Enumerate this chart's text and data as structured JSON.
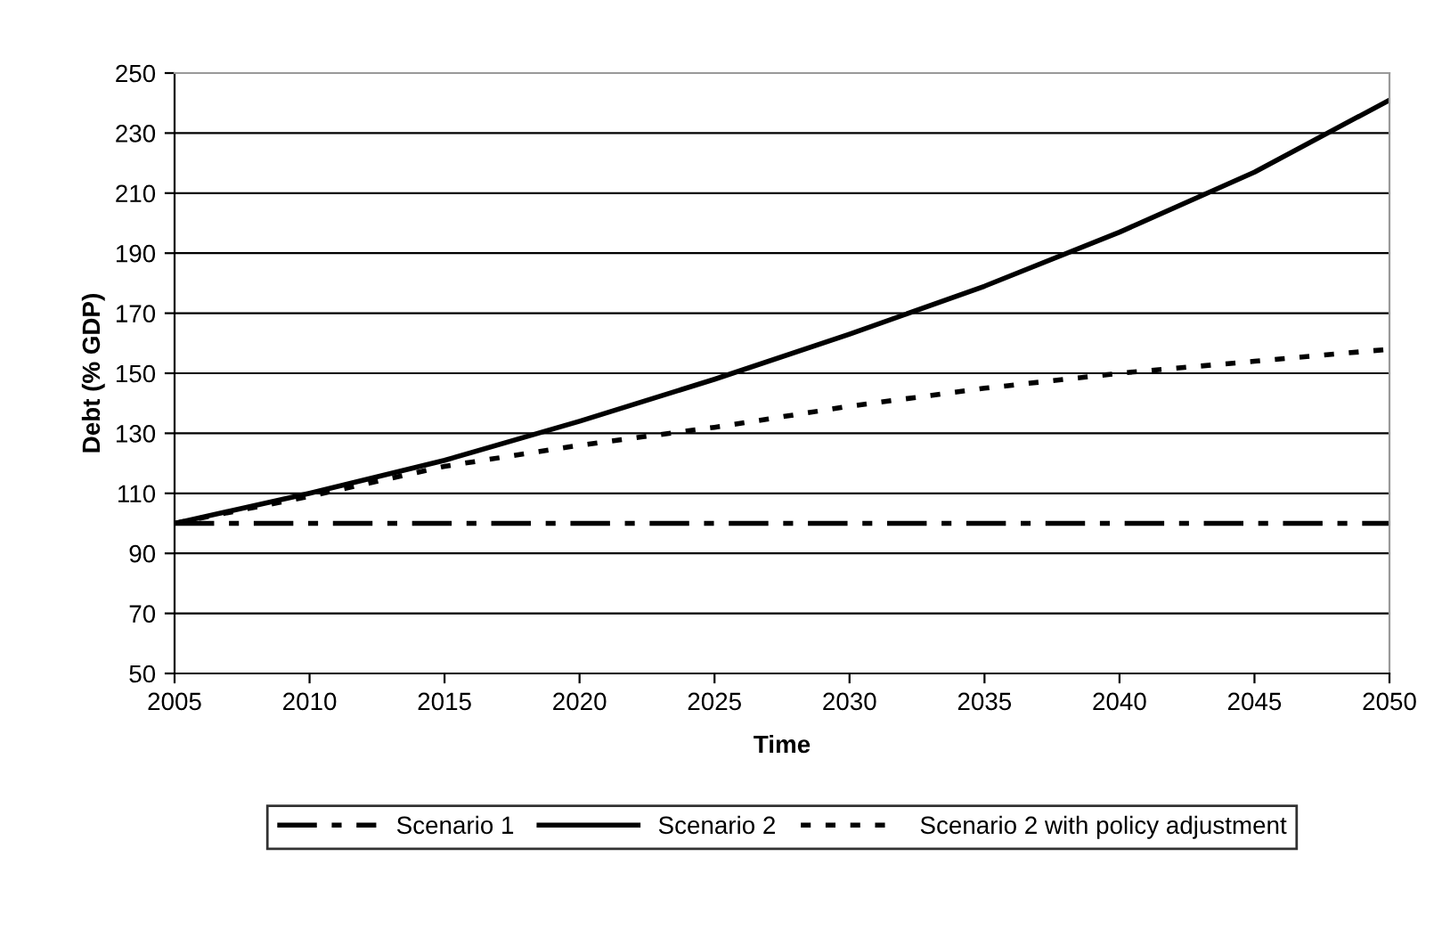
{
  "chart_data": {
    "type": "line",
    "xlabel": "Time",
    "ylabel": "Debt (% GDP)",
    "x": [
      2005,
      2010,
      2015,
      2020,
      2025,
      2030,
      2035,
      2040,
      2045,
      2050
    ],
    "series": [
      {
        "name": "Scenario 1",
        "color": "#000000",
        "line_style": "dashdot",
        "values": [
          100,
          100,
          100,
          100,
          100,
          100,
          100,
          100,
          100,
          100
        ]
      },
      {
        "name": "Scenario 2",
        "color": "#000000",
        "line_style": "solid",
        "values": [
          100,
          110,
          121,
          134,
          148,
          163,
          179,
          197,
          217,
          241
        ]
      },
      {
        "name": "Scenario 2 with policy adjustment",
        "color": "#000000",
        "line_style": "dotted",
        "values": [
          100,
          109,
          119,
          126,
          132,
          139,
          145,
          150,
          154,
          158
        ]
      }
    ],
    "xlim": [
      2005,
      2050
    ],
    "xticks": [
      2005,
      2010,
      2015,
      2020,
      2025,
      2030,
      2035,
      2040,
      2045,
      2050
    ],
    "ylim": [
      50,
      250
    ],
    "yticks": [
      50,
      70,
      90,
      110,
      130,
      150,
      170,
      190,
      210,
      230,
      250
    ],
    "grid": "y",
    "legend": "bottom",
    "marker": "none"
  }
}
